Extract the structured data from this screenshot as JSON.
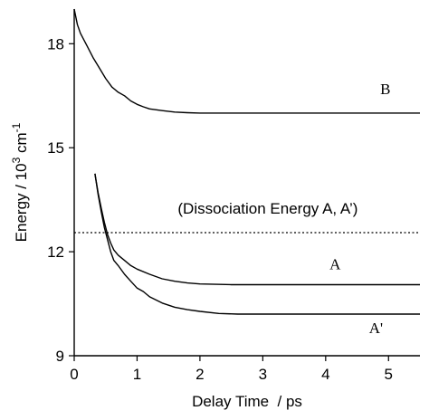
{
  "chart_data": {
    "type": "line",
    "title": "",
    "xlabel": "Delay Time  / ps",
    "ylabel_main": "Energy / 10",
    "ylabel_sup": "3",
    "ylabel_unit": " cm",
    "ylabel_unit_sup": "-1",
    "xlim": [
      0,
      5.5
    ],
    "ylim": [
      9,
      19
    ],
    "xticks": [
      0,
      1,
      2,
      3,
      4,
      5
    ],
    "yticks": [
      9,
      12,
      15,
      18
    ],
    "grid": false,
    "series": [
      {
        "name": "B",
        "x": [
          0,
          0.05,
          0.1,
          0.2,
          0.3,
          0.4,
          0.5,
          0.6,
          0.7,
          0.8,
          0.9,
          1.0,
          1.1,
          1.2,
          1.4,
          1.6,
          1.8,
          2.0,
          2.5,
          3.0,
          4.0,
          5.0,
          5.5
        ],
        "y": [
          19.0,
          18.55,
          18.3,
          17.95,
          17.6,
          17.3,
          17.0,
          16.75,
          16.6,
          16.5,
          16.35,
          16.25,
          16.18,
          16.12,
          16.07,
          16.03,
          16.01,
          16.0,
          16.0,
          16.0,
          16.0,
          16.0,
          16.0
        ]
      },
      {
        "name": "A",
        "x": [
          0.33,
          0.38,
          0.43,
          0.48,
          0.53,
          0.58,
          0.63,
          0.7,
          0.8,
          0.9,
          1.0,
          1.2,
          1.4,
          1.6,
          1.8,
          2.0,
          2.5,
          3.0,
          4.0,
          5.0,
          5.5
        ],
        "y": [
          14.25,
          13.7,
          13.25,
          12.85,
          12.5,
          12.25,
          12.05,
          11.9,
          11.75,
          11.6,
          11.5,
          11.35,
          11.22,
          11.15,
          11.1,
          11.07,
          11.05,
          11.05,
          11.05,
          11.05,
          11.05
        ]
      },
      {
        "name": "A'",
        "x": [
          0.33,
          0.38,
          0.43,
          0.48,
          0.53,
          0.58,
          0.63,
          0.7,
          0.8,
          0.9,
          1.0,
          1.1,
          1.2,
          1.4,
          1.6,
          1.8,
          2.0,
          2.3,
          2.6,
          3.0,
          4.0,
          5.0,
          5.5
        ],
        "y": [
          14.25,
          13.65,
          13.15,
          12.7,
          12.35,
          12.0,
          11.75,
          11.6,
          11.35,
          11.15,
          10.95,
          10.85,
          10.7,
          10.52,
          10.4,
          10.33,
          10.28,
          10.22,
          10.2,
          10.2,
          10.2,
          10.2,
          10.2
        ]
      }
    ],
    "series_labels": [
      {
        "text": "B",
        "x": 4.95,
        "y": 16.55
      },
      {
        "text": "A",
        "x": 4.15,
        "y": 11.5
      },
      {
        "text": "A'",
        "x": 4.8,
        "y": 9.65
      }
    ],
    "reference_line": {
      "y": 12.55,
      "style": "dotted"
    },
    "annotation": {
      "text": "(Dissociation Energy A, A’)",
      "x": 3.08,
      "y": 13.1
    }
  }
}
